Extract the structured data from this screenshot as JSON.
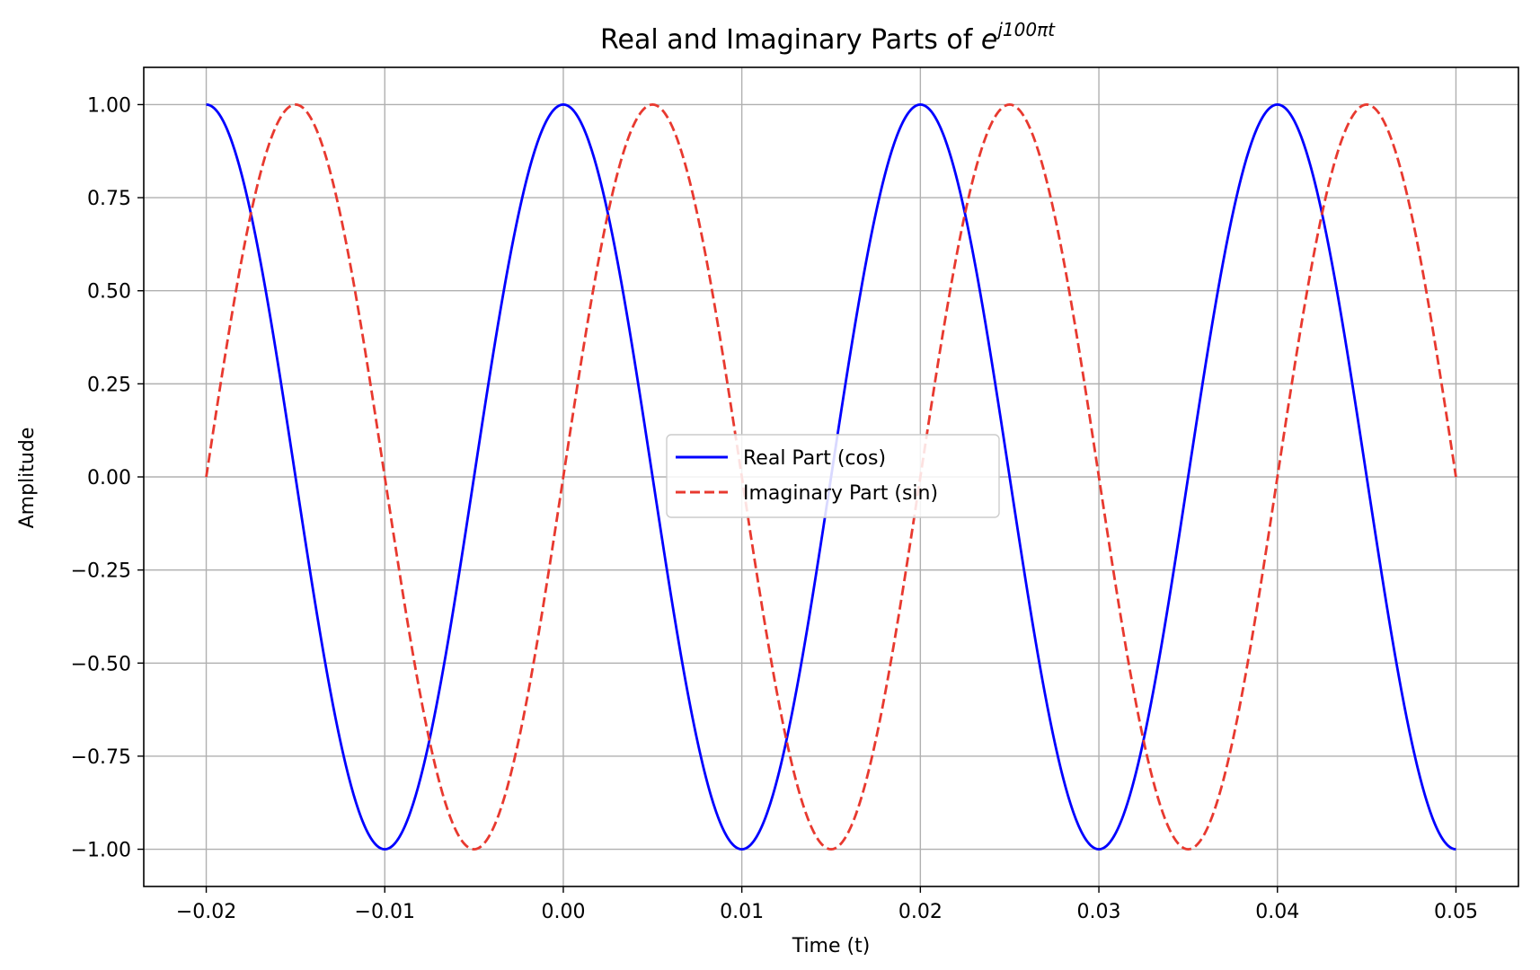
{
  "chart_data": {
    "type": "line",
    "title": "Real and Imaginary Parts of ",
    "title_math_base": "e",
    "title_math_exponent": "j100πt",
    "xlabel": "Time (t)",
    "ylabel": "Amplitude",
    "xlim": [
      -0.0235,
      0.0535
    ],
    "ylim": [
      -1.1,
      1.1
    ],
    "x_ticks": [
      -0.02,
      -0.01,
      0.0,
      0.01,
      0.02,
      0.03,
      0.04,
      0.05
    ],
    "x_tick_labels": [
      "−0.02",
      "−0.01",
      "0.00",
      "0.01",
      "0.02",
      "0.03",
      "0.04",
      "0.05"
    ],
    "y_ticks": [
      1.0,
      0.75,
      0.5,
      0.25,
      0.0,
      -0.25,
      -0.5,
      -0.75,
      -1.0
    ],
    "y_tick_labels": [
      "1.00",
      "0.75",
      "0.50",
      "0.25",
      "0.00",
      "−0.25",
      "−0.50",
      "−0.75",
      "−1.00"
    ],
    "grid": true,
    "legend_placement": "center",
    "x_range": [
      -0.02,
      0.05
    ],
    "frequency_hz": 50,
    "series": [
      {
        "name": "Real Part (cos)",
        "function": "cos",
        "color": "#0000ff",
        "style": "solid"
      },
      {
        "name": "Imaginary Part (sin)",
        "function": "sin",
        "color": "#e8392f",
        "style": "dashed"
      }
    ]
  }
}
